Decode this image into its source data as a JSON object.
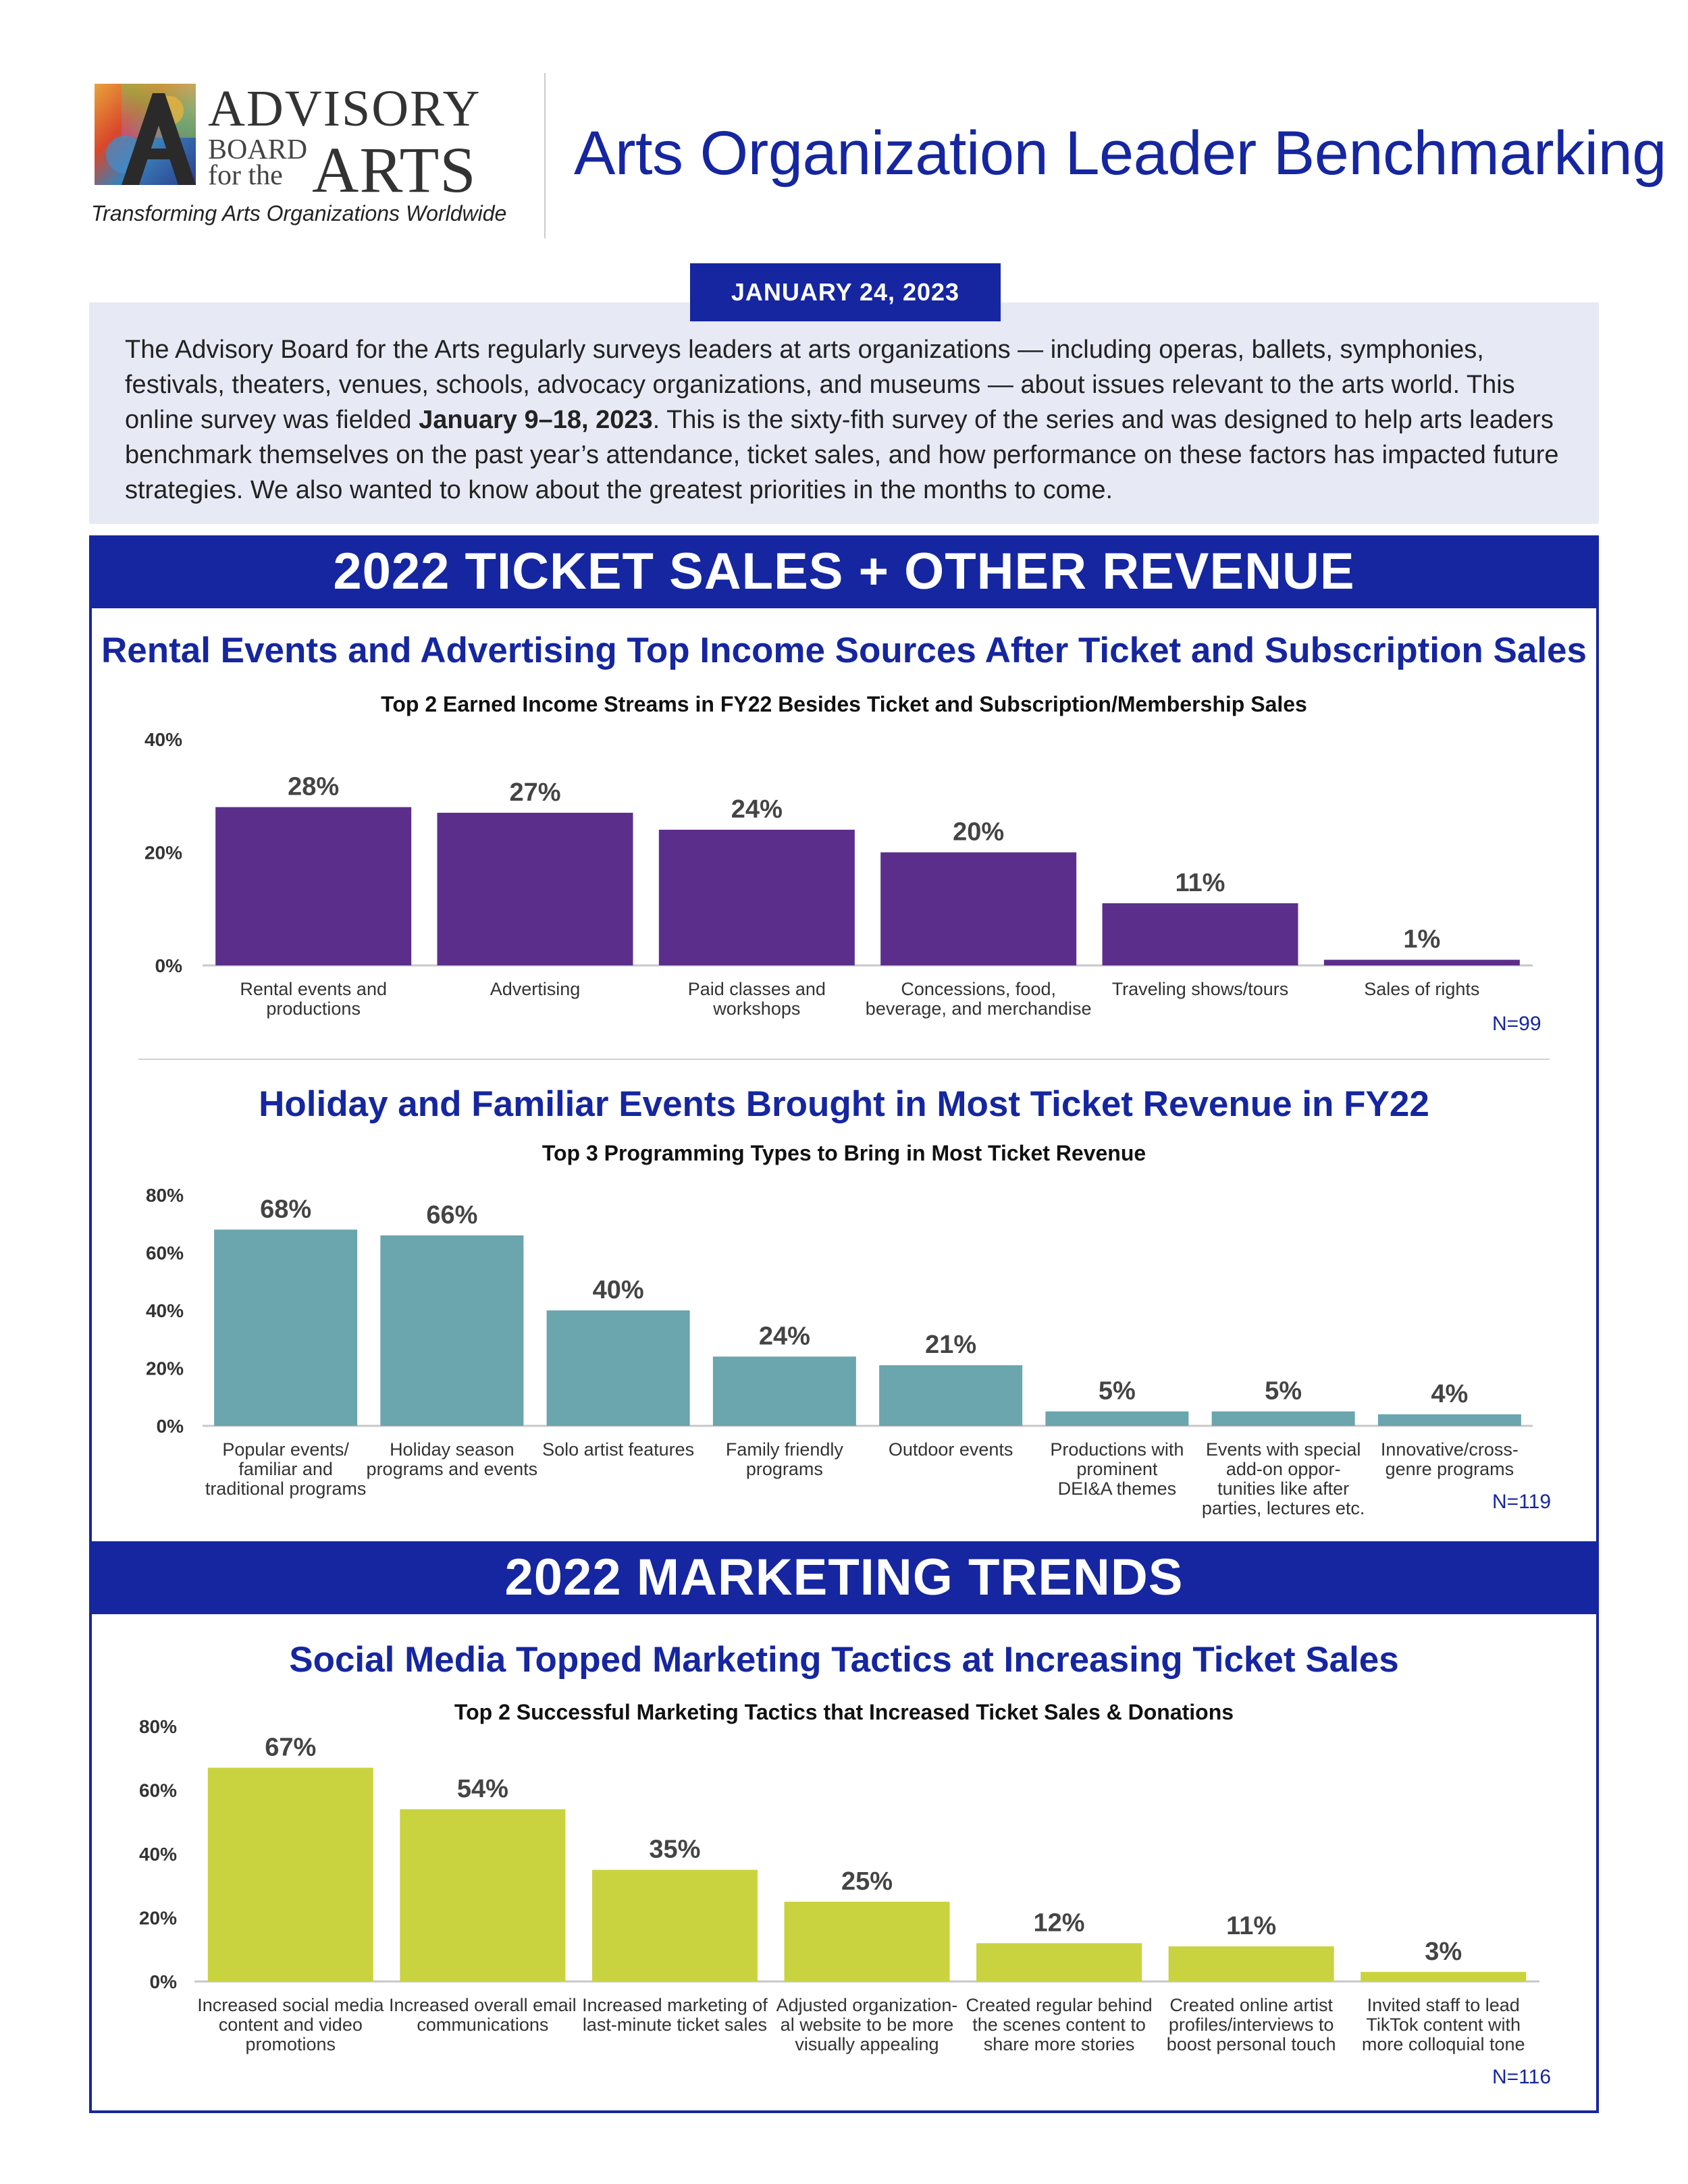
{
  "header": {
    "logo": {
      "line1": "ADVISORY",
      "line2a": "BOARD",
      "line2b": "for the",
      "line3": "ARTS"
    },
    "tagline": "Transforming Arts Organizations Worldwide",
    "title": "Arts Organization Leader Benchmarking"
  },
  "intro": {
    "date": "JANUARY 24, 2023",
    "text_before": "The Advisory Board for the Arts regularly surveys leaders at arts organizations — including  operas, ballets, symphonies, festivals, theaters, venues, schools, advocacy organizations, and museums — about issues relevant to the arts world. This online survey was fielded ",
    "text_bold": "January 9–18, 2023",
    "text_after": ". This is the sixty-fith survey of the series and was designed to help arts leaders benchmark themselves on the past year’s attendance, ticket sales, and how performance on these factors has impacted future strategies. We also wanted to know about the greatest priorities in the months to come."
  },
  "sections": {
    "ticket_sales": {
      "banner": "2022 TICKET SALES + OTHER REVENUE"
    },
    "marketing": {
      "banner": "2022 MARKETING TRENDS"
    }
  },
  "colors": {
    "navy": "#1526a0",
    "purple": "#5c2e8c",
    "teal": "#6ba5ad",
    "lime": "#c9d33f"
  },
  "chart_data": [
    {
      "type": "bar",
      "title": "Rental Events and Advertising Top Income Sources After Ticket and Subscription Sales",
      "subtitle": "Top 2 Earned Income Streams in FY22 Besides Ticket and Subscription/Membership Sales",
      "categories": [
        [
          "Rental events and",
          "productions"
        ],
        [
          "Advertising"
        ],
        [
          "Paid classes and",
          "workshops"
        ],
        [
          "Concessions, food,",
          "beverage, and merchandise"
        ],
        [
          "Traveling shows/tours"
        ],
        [
          "Sales of rights"
        ]
      ],
      "values": [
        28,
        27,
        24,
        20,
        11,
        1
      ],
      "value_labels": [
        "28%",
        "27%",
        "24%",
        "20%",
        "11%",
        "1%"
      ],
      "yticks": [
        "0%",
        "20%",
        "40%"
      ],
      "ylim": [
        0,
        40
      ],
      "n_label": "N=99",
      "color": "#5c2e8c",
      "grid": false,
      "xlabel": "",
      "ylabel": ""
    },
    {
      "type": "bar",
      "title": "Holiday and Familiar Events Brought in Most Ticket Revenue in FY22",
      "subtitle": "Top 3 Programming Types to Bring in Most Ticket Revenue",
      "categories": [
        [
          "Popular events/",
          "familiar and",
          "traditional programs"
        ],
        [
          "Holiday season",
          "programs and events"
        ],
        [
          "Solo artist features"
        ],
        [
          "Family friendly",
          "programs"
        ],
        [
          "Outdoor events"
        ],
        [
          "Productions with",
          "prominent",
          "DEI&A themes"
        ],
        [
          "Events with special",
          "add-on oppor-",
          "tunities like after",
          "parties, lectures etc."
        ],
        [
          "Innovative/cross-",
          "genre programs"
        ]
      ],
      "values": [
        68,
        66,
        40,
        24,
        21,
        5,
        5,
        4
      ],
      "value_labels": [
        "68%",
        "66%",
        "40%",
        "24%",
        "21%",
        "5%",
        "5%",
        "4%"
      ],
      "yticks": [
        "0%",
        "20%",
        "40%",
        "60%",
        "80%"
      ],
      "ylim": [
        0,
        80
      ],
      "n_label": "N=119",
      "color": "#6ba5ad",
      "grid": false,
      "xlabel": "",
      "ylabel": ""
    },
    {
      "type": "bar",
      "title": "Social Media Topped Marketing Tactics at Increasing Ticket Sales",
      "subtitle": "Top 2 Successful Marketing Tactics that Increased Ticket Sales & Donations",
      "categories": [
        [
          "Increased social media",
          "content and video",
          "promotions"
        ],
        [
          "Increased overall email",
          "communications"
        ],
        [
          "Increased marketing of",
          "last-minute ticket sales"
        ],
        [
          "Adjusted organization-",
          "al website to be more",
          "visually appealing"
        ],
        [
          "Created regular behind",
          "the scenes content to",
          "share more stories"
        ],
        [
          "Created online artist",
          "profiles/interviews to",
          "boost personal touch"
        ],
        [
          "Invited staff to lead",
          "TikTok content with",
          "more colloquial tone"
        ]
      ],
      "values": [
        67,
        54,
        35,
        25,
        12,
        11,
        3
      ],
      "value_labels": [
        "67%",
        "54%",
        "35%",
        "25%",
        "12%",
        "11%",
        "3%"
      ],
      "yticks": [
        "0%",
        "20%",
        "40%",
        "60%",
        "80%"
      ],
      "ylim": [
        0,
        80
      ],
      "n_label": "N=116",
      "color": "#c9d33f",
      "grid": false,
      "xlabel": "",
      "ylabel": ""
    }
  ]
}
